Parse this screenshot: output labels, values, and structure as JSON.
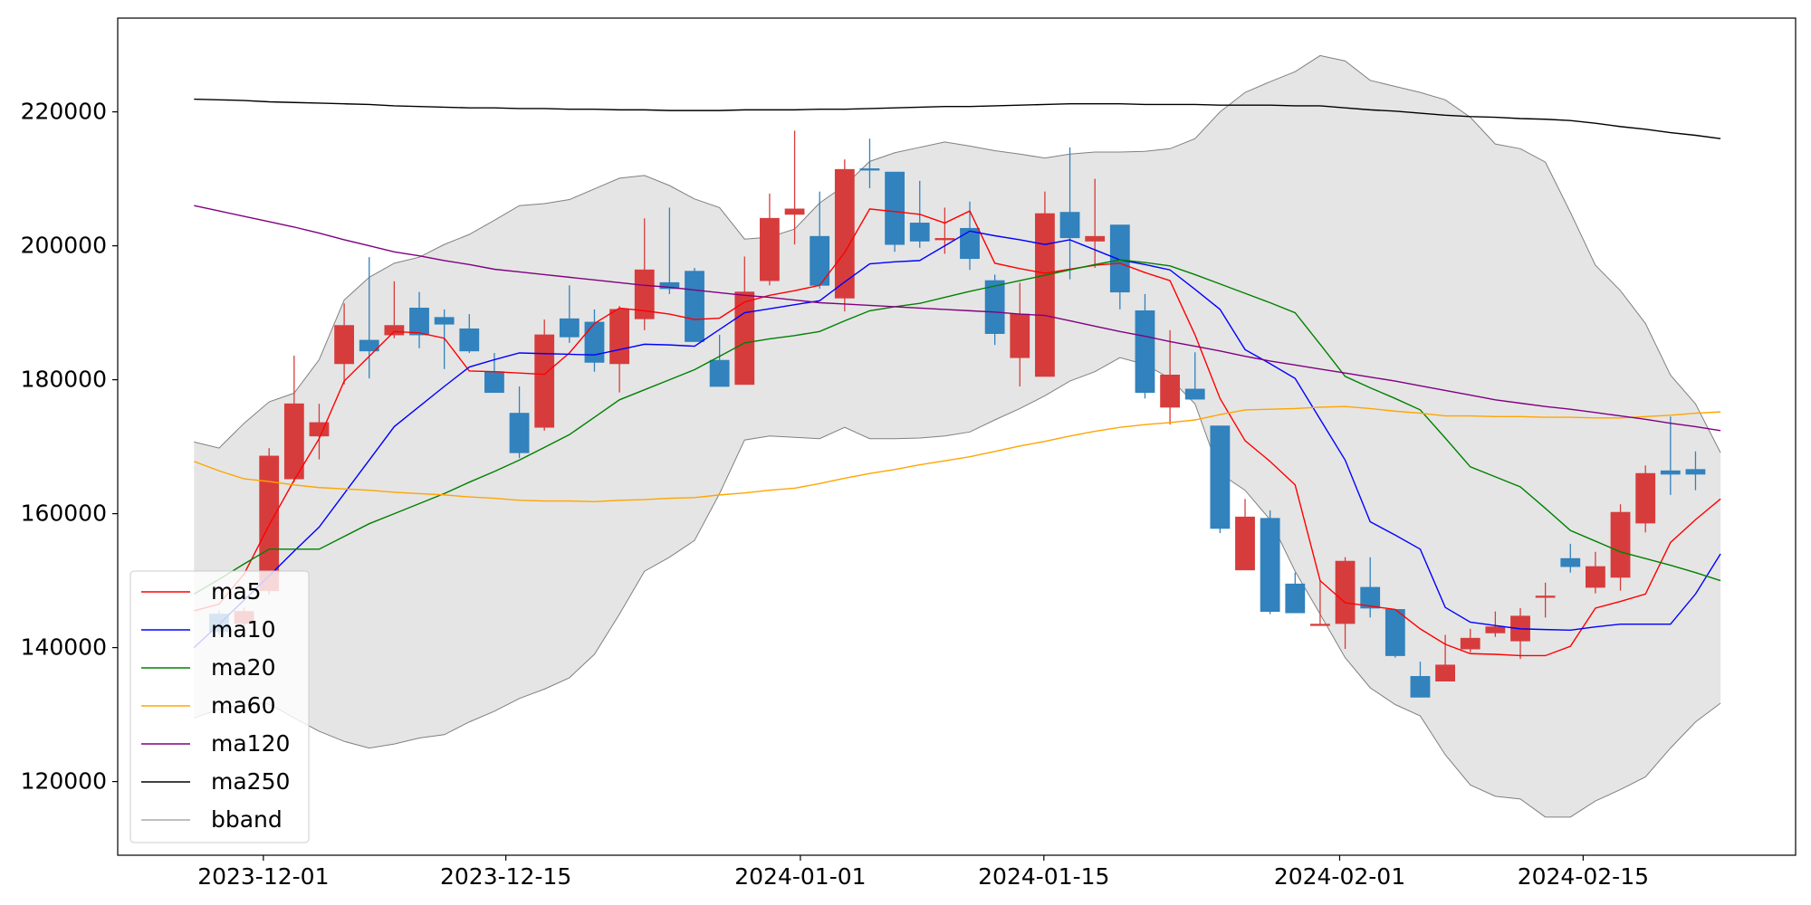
{
  "chart_data": {
    "type": "candlestick",
    "up_color": "#d73c3c",
    "down_color": "#3182bd",
    "legend": "lower left",
    "grid": false,
    "x": [
      0,
      1,
      2,
      3,
      4,
      5,
      6,
      7,
      8,
      9,
      10,
      11,
      12,
      13,
      14,
      15,
      16,
      17,
      18,
      19,
      20,
      21,
      22,
      23,
      24,
      25,
      26,
      27,
      28,
      29,
      30,
      31,
      32,
      33,
      34,
      35,
      36,
      37,
      38,
      39,
      40,
      41,
      42,
      43,
      44,
      45,
      46,
      47,
      48,
      49,
      50,
      51,
      52,
      53,
      54,
      55,
      56,
      57,
      58,
      59,
      60,
      61
    ],
    "xlim": [
      -3.05,
      64.0
    ],
    "xticks": [
      {
        "value": 2.77,
        "label": "2023-12-01"
      },
      {
        "value": 12.46,
        "label": "2023-12-15"
      },
      {
        "value": 24.23,
        "label": "2024-01-01"
      },
      {
        "value": 33.96,
        "label": "2024-01-15"
      },
      {
        "value": 45.78,
        "label": "2024-02-01"
      },
      {
        "value": 55.51,
        "label": "2024-02-15"
      }
    ],
    "ylim": [
      109000,
      234000
    ],
    "yticks": [
      120000,
      140000,
      160000,
      180000,
      200000,
      220000
    ],
    "open": [
      null,
      145000,
      143600,
      148500,
      165200,
      171600,
      182400,
      185900,
      186700,
      190700,
      189300,
      187600,
      181200,
      175000,
      172900,
      189100,
      188600,
      182400,
      189100,
      194500,
      196200,
      182900,
      179300,
      194800,
      204700,
      201400,
      192200,
      211500,
      211000,
      203400,
      200900,
      202600,
      194800,
      183300,
      180500,
      205000,
      200700,
      203100,
      190300,
      175900,
      178600,
      173100,
      151600,
      159300,
      149500,
      143300,
      143600,
      149000,
      145700,
      135700,
      135000,
      139800,
      142200,
      141000,
      147500,
      153300,
      149000,
      150500,
      158600,
      166400,
      166600,
      null
    ],
    "high": [
      null,
      145500,
      146000,
      169800,
      183600,
      176400,
      191400,
      198300,
      194700,
      193100,
      190500,
      189800,
      184000,
      179000,
      189000,
      194100,
      190500,
      191000,
      204100,
      205700,
      196700,
      186700,
      198400,
      207800,
      217200,
      208100,
      212900,
      216000,
      211000,
      209700,
      205700,
      206600,
      195700,
      194500,
      208100,
      214700,
      210000,
      203100,
      192800,
      187400,
      184100,
      173100,
      162200,
      160500,
      151200,
      150000,
      153500,
      153500,
      145700,
      137900,
      141900,
      142800,
      145400,
      145900,
      149700,
      155500,
      154300,
      161400,
      167200,
      174500,
      169300,
      null
    ],
    "low": [
      null,
      141900,
      143200,
      147900,
      164700,
      168100,
      179300,
      180200,
      186200,
      184700,
      181600,
      184000,
      178100,
      168300,
      172400,
      185500,
      181200,
      178100,
      187400,
      192800,
      185700,
      179000,
      179300,
      194100,
      200200,
      193600,
      190200,
      208600,
      199100,
      199700,
      198800,
      196400,
      185200,
      179000,
      180500,
      195000,
      196700,
      190500,
      177200,
      173300,
      177100,
      157100,
      151600,
      145000,
      145200,
      143300,
      139800,
      144500,
      138500,
      132600,
      135000,
      139300,
      141600,
      138300,
      144500,
      151200,
      148100,
      148500,
      157200,
      162800,
      163500,
      null
    ],
    "close": [
      null,
      142400,
      145400,
      168600,
      176400,
      173600,
      188100,
      184300,
      188100,
      186700,
      188300,
      184300,
      178100,
      169100,
      186700,
      186400,
      182600,
      190500,
      196400,
      193600,
      185700,
      179000,
      193100,
      204100,
      205500,
      194100,
      211400,
      211300,
      200200,
      200700,
      201100,
      198100,
      186900,
      189800,
      204800,
      201200,
      201400,
      193100,
      178100,
      180700,
      177100,
      157800,
      159500,
      145400,
      145200,
      143500,
      152900,
      145900,
      138800,
      132600,
      137400,
      141400,
      143100,
      144700,
      147700,
      152100,
      152100,
      160200,
      166000,
      165900,
      165900,
      null
    ],
    "series": [
      {
        "name": "ma5",
        "color": "#ff0000",
        "values": [
          145500,
          146500,
          151000,
          158300,
          165000,
          171200,
          179800,
          183500,
          187200,
          187000,
          186200,
          181300,
          181200,
          181000,
          180800,
          184000,
          188400,
          190700,
          190300,
          189800,
          189000,
          189200,
          191600,
          192600,
          193300,
          194100,
          199000,
          205500,
          205100,
          204700,
          203400,
          205200,
          197400,
          196600,
          195900,
          196500,
          197100,
          197400,
          196000,
          194800,
          186700,
          177200,
          170900,
          167800,
          164300,
          150000,
          146700,
          146200,
          145700,
          142800,
          140500,
          139100,
          139000,
          138800,
          138800,
          140200,
          145900,
          146900,
          148000,
          155700,
          159100,
          162200
        ]
      },
      {
        "name": "ma10",
        "color": "#0000ff",
        "values": [
          140000,
          143500,
          147100,
          150700,
          154400,
          158000,
          163000,
          168000,
          173000,
          176000,
          179000,
          181900,
          183000,
          184000,
          183900,
          183800,
          183700,
          184500,
          185300,
          185200,
          185000,
          187500,
          190000,
          190600,
          191200,
          191800,
          194600,
          197300,
          197600,
          197800,
          200000,
          202200,
          201500,
          200900,
          200200,
          200900,
          199400,
          197900,
          197200,
          196400,
          193500,
          190500,
          184500,
          182400,
          180200,
          174100,
          168000,
          158800,
          156800,
          154700,
          146000,
          143800,
          143300,
          142800,
          142700,
          142600,
          143100,
          143500,
          143500,
          143500,
          148000,
          154000
        ]
      },
      {
        "name": "ma20",
        "color": "#008000",
        "values": [
          148000,
          150200,
          152500,
          154700,
          154700,
          154700,
          156600,
          158500,
          160000,
          161500,
          163000,
          164700,
          166300,
          168000,
          169900,
          171800,
          174400,
          177000,
          178500,
          180000,
          181500,
          183500,
          185500,
          186100,
          186600,
          187200,
          188800,
          190300,
          190900,
          191400,
          192300,
          193200,
          194000,
          194800,
          195600,
          196400,
          197200,
          197900,
          197500,
          197000,
          195700,
          194300,
          192900,
          191500,
          190000,
          185300,
          180500,
          178800,
          177200,
          175500,
          171300,
          167000,
          165500,
          164000,
          160800,
          157500,
          155900,
          154300,
          153300,
          152300,
          151200,
          150000
        ]
      },
      {
        "name": "ma60",
        "color": "#ffa500",
        "values": [
          167800,
          166400,
          165200,
          164800,
          164300,
          163900,
          163700,
          163500,
          163200,
          163000,
          162800,
          162500,
          162300,
          162000,
          161900,
          161900,
          161800,
          162000,
          162100,
          162300,
          162400,
          162800,
          163100,
          163500,
          163800,
          164500,
          165300,
          166000,
          166600,
          167300,
          167900,
          168500,
          169300,
          170100,
          170800,
          171600,
          172300,
          172900,
          173300,
          173600,
          174000,
          174800,
          175500,
          175600,
          175700,
          175900,
          176000,
          175700,
          175300,
          175000,
          174600,
          174600,
          174500,
          174500,
          174400,
          174400,
          174300,
          174300,
          174500,
          174700,
          175000,
          175200
        ]
      },
      {
        "name": "ma120",
        "color": "#800080",
        "values": [
          206000,
          205200,
          204400,
          203600,
          202800,
          201900,
          200900,
          200000,
          199100,
          198500,
          197800,
          197200,
          196500,
          196100,
          195700,
          195300,
          194900,
          194500,
          194100,
          193800,
          193400,
          193000,
          192600,
          192300,
          191900,
          191500,
          191300,
          191100,
          190900,
          190700,
          190500,
          190300,
          190100,
          189800,
          189600,
          188800,
          188000,
          187200,
          186500,
          185700,
          185000,
          184300,
          183500,
          182800,
          182200,
          181600,
          181000,
          180400,
          179800,
          179100,
          178400,
          177700,
          177000,
          176500,
          176000,
          175600,
          175100,
          174600,
          174100,
          173500,
          173000,
          172400
        ]
      },
      {
        "name": "ma250",
        "color": "#000000",
        "values": [
          221900,
          221800,
          221700,
          221500,
          221400,
          221300,
          221200,
          221100,
          220900,
          220800,
          220700,
          220600,
          220600,
          220500,
          220500,
          220400,
          220400,
          220300,
          220300,
          220200,
          220200,
          220200,
          220300,
          220300,
          220300,
          220400,
          220400,
          220500,
          220600,
          220700,
          220800,
          220800,
          220900,
          221000,
          221100,
          221200,
          221200,
          221200,
          221100,
          221100,
          221100,
          221000,
          221000,
          221000,
          220900,
          220900,
          220600,
          220300,
          220100,
          219800,
          219500,
          219300,
          219200,
          219000,
          218900,
          218700,
          218300,
          217800,
          217400,
          216900,
          216500,
          216000
        ]
      },
      {
        "name": "bband",
        "color": "#808080",
        "fill": "#e5e5e5",
        "upper": [
          170700,
          169800,
          173500,
          176700,
          178000,
          183000,
          191900,
          195300,
          197400,
          198300,
          200200,
          201700,
          203800,
          206000,
          206300,
          206900,
          208500,
          210100,
          210500,
          209000,
          207000,
          205700,
          201000,
          201300,
          202500,
          206400,
          209000,
          212600,
          213900,
          214700,
          215500,
          214900,
          214200,
          213700,
          213100,
          213700,
          214000,
          214000,
          214100,
          214500,
          216000,
          220000,
          222900,
          224500,
          226000,
          228400,
          227600,
          224700,
          223800,
          222900,
          221800,
          219200,
          215200,
          214500,
          212500,
          205000,
          197100,
          193300,
          188400,
          180700,
          176400,
          169100
        ],
        "lower": [
          129500,
          130800,
          131500,
          131600,
          129500,
          127500,
          126000,
          125000,
          125600,
          126500,
          127000,
          128900,
          130500,
          132400,
          133800,
          135500,
          139000,
          145000,
          151400,
          153500,
          156000,
          163000,
          171000,
          171600,
          171400,
          171200,
          172900,
          171200,
          171200,
          171300,
          171600,
          172200,
          174000,
          175700,
          177600,
          179800,
          181200,
          183300,
          182300,
          180200,
          176400,
          166000,
          163500,
          159100,
          151400,
          145000,
          138500,
          134000,
          131500,
          129800,
          124000,
          119500,
          117800,
          117400,
          114700,
          114700,
          117100,
          118800,
          120700,
          125000,
          128900,
          131700
        ]
      }
    ]
  }
}
